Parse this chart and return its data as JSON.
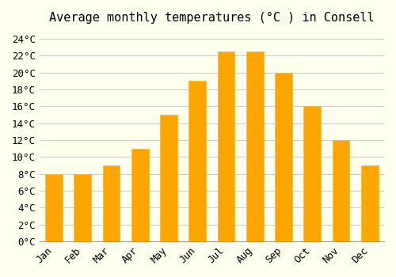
{
  "title": "Average monthly temperatures (°C ) in Consell",
  "months": [
    "Jan",
    "Feb",
    "Mar",
    "Apr",
    "May",
    "Jun",
    "Jul",
    "Aug",
    "Sep",
    "Oct",
    "Nov",
    "Dec"
  ],
  "values": [
    8.0,
    8.0,
    9.0,
    11.0,
    15.0,
    19.0,
    22.5,
    22.5,
    20.0,
    16.0,
    12.0,
    9.0
  ],
  "bar_color": "#FFA500",
  "bar_edge_color": "#FFB733",
  "background_color": "#FFFFEE",
  "grid_color": "#CCCCCC",
  "ylim": [
    0,
    25
  ],
  "yticks": [
    0,
    2,
    4,
    6,
    8,
    10,
    12,
    14,
    16,
    18,
    20,
    22,
    24
  ],
  "title_fontsize": 11,
  "tick_fontsize": 9,
  "font_family": "monospace"
}
